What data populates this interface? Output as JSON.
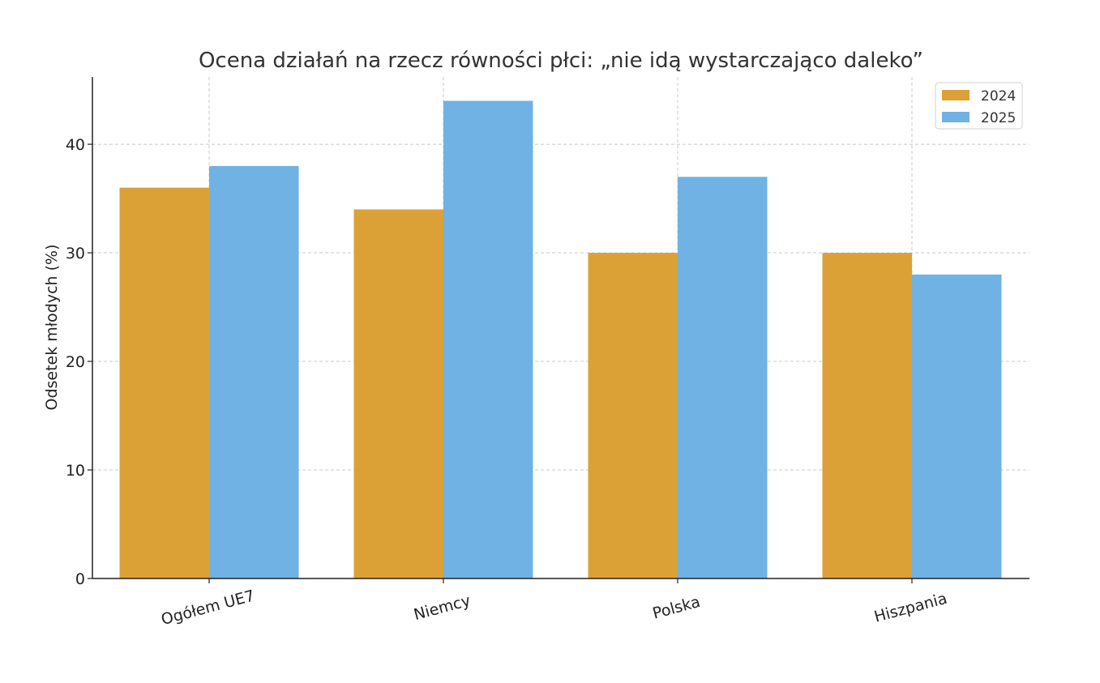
{
  "chart_data": {
    "type": "bar",
    "title": "Ocena działań na rzecz równości płci: „nie idą wystarczająco daleko”",
    "xlabel": "",
    "ylabel": "Odsetek młodych (%)",
    "categories": [
      "Ogółem UE7",
      "Niemcy",
      "Polska",
      "Hiszpania"
    ],
    "series": [
      {
        "name": "2024",
        "values": [
          36,
          34,
          30,
          30
        ],
        "color": "#dba137"
      },
      {
        "name": "2025",
        "values": [
          38,
          44,
          37,
          28
        ],
        "color": "#6fb2e3"
      }
    ],
    "yticks": [
      0,
      10,
      20,
      30,
      40
    ],
    "ylim": [
      0,
      46.2
    ],
    "grid": true,
    "legend": "top-right"
  }
}
